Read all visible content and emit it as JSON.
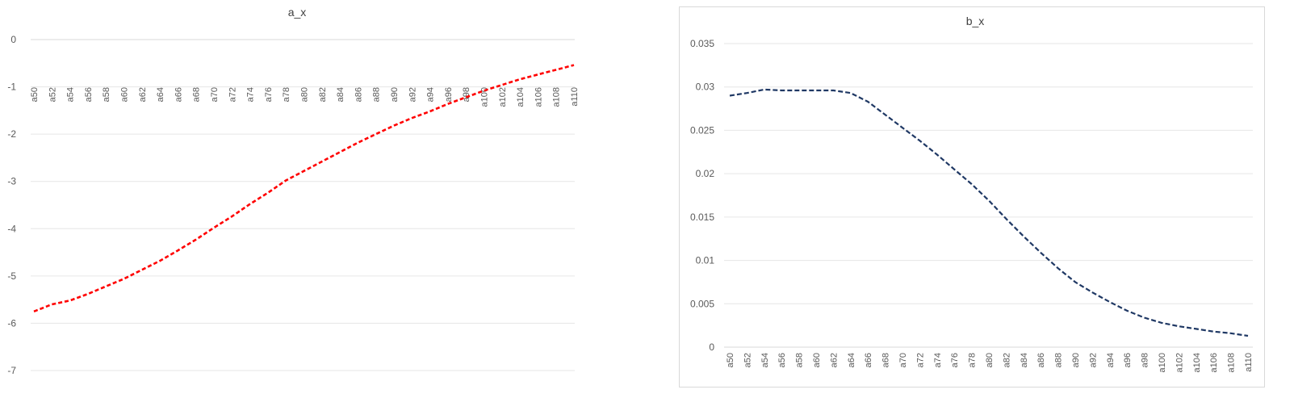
{
  "chart_data": [
    {
      "type": "line",
      "title": "a_x",
      "categories": [
        "a50",
        "a52",
        "a54",
        "a56",
        "a58",
        "a60",
        "a62",
        "a64",
        "a66",
        "a68",
        "a70",
        "a72",
        "a74",
        "a76",
        "a78",
        "a80",
        "a82",
        "a84",
        "a86",
        "a88",
        "a90",
        "a92",
        "a94",
        "a96",
        "a98",
        "a100",
        "a102",
        "a104",
        "a106",
        "a108",
        "a110"
      ],
      "series": [
        {
          "values": [
            -5.75,
            -5.6,
            -5.52,
            -5.38,
            -5.22,
            -5.06,
            -4.87,
            -4.68,
            -4.46,
            -4.23,
            -3.98,
            -3.74,
            -3.48,
            -3.24,
            -2.98,
            -2.78,
            -2.58,
            -2.38,
            -2.18,
            -2.0,
            -1.82,
            -1.66,
            -1.52,
            -1.36,
            -1.22,
            -1.08,
            -0.96,
            -0.84,
            -0.74,
            -0.64,
            -0.54
          ],
          "color": "#ff0000",
          "style": "dashed"
        }
      ],
      "ylim": [
        -7,
        0
      ],
      "yticks": [
        "0",
        "-1",
        "-2",
        "-3",
        "-4",
        "-5",
        "-6",
        "-7"
      ],
      "grid": true,
      "legend": "none",
      "xaxis_position": "top"
    },
    {
      "type": "line",
      "title": "b_x",
      "categories": [
        "a50",
        "a52",
        "a54",
        "a56",
        "a58",
        "a60",
        "a62",
        "a64",
        "a66",
        "a68",
        "a70",
        "a72",
        "a74",
        "a76",
        "a78",
        "a80",
        "a82",
        "a84",
        "a86",
        "a88",
        "a90",
        "a92",
        "a94",
        "a96",
        "a98",
        "a100",
        "a102",
        "a104",
        "a106",
        "a108",
        "a110"
      ],
      "series": [
        {
          "values": [
            0.029,
            0.0293,
            0.0297,
            0.0296,
            0.0296,
            0.0296,
            0.0296,
            0.0293,
            0.0283,
            0.0268,
            0.0253,
            0.0238,
            0.0222,
            0.0205,
            0.0188,
            0.0169,
            0.0148,
            0.0128,
            0.0109,
            0.0091,
            0.0075,
            0.0063,
            0.0052,
            0.0042,
            0.0034,
            0.0028,
            0.0024,
            0.0021,
            0.0018,
            0.0016,
            0.0013
          ],
          "color": "#1f3864",
          "style": "dashed"
        }
      ],
      "ylim": [
        0,
        0.035
      ],
      "yticks": [
        "0.035",
        "0.03",
        "0.025",
        "0.02",
        "0.015",
        "0.01",
        "0.005",
        "0"
      ],
      "grid": true,
      "legend": "none",
      "xaxis_position": "bottom"
    }
  ]
}
